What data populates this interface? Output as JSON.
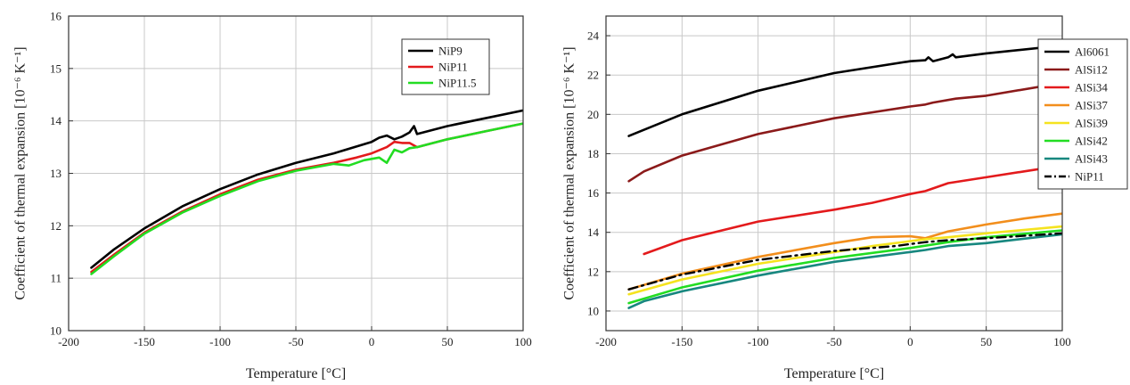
{
  "chart_data": [
    {
      "type": "line",
      "xlabel": "Temperature [°C]",
      "ylabel": "Coefficient of thermal expansion [10⁻⁶ K⁻¹]",
      "xlim": [
        -200,
        100
      ],
      "ylim": [
        10,
        16
      ],
      "xticks": [
        -200,
        -150,
        -100,
        -50,
        0,
        50,
        100
      ],
      "yticks": [
        10,
        11,
        12,
        13,
        14,
        15,
        16
      ],
      "grid": true,
      "legend_position": "top-right",
      "series": [
        {
          "name": "NiP9",
          "color": "#000000",
          "style": "solid",
          "x": [
            -185,
            -170,
            -150,
            -125,
            -100,
            -75,
            -50,
            -25,
            0,
            5,
            10,
            15,
            20,
            25,
            28,
            30,
            50,
            75,
            100
          ],
          "y": [
            11.2,
            11.55,
            11.95,
            12.37,
            12.7,
            12.98,
            13.2,
            13.38,
            13.6,
            13.68,
            13.72,
            13.65,
            13.7,
            13.78,
            13.9,
            13.75,
            13.9,
            14.05,
            14.2
          ]
        },
        {
          "name": "NiP11",
          "color": "#e31a1c",
          "style": "solid",
          "x": [
            -185,
            -170,
            -150,
            -125,
            -100,
            -75,
            -50,
            -25,
            -10,
            0,
            10,
            15,
            20,
            25,
            30,
            50,
            75,
            100
          ],
          "y": [
            11.12,
            11.45,
            11.87,
            12.27,
            12.6,
            12.88,
            13.07,
            13.2,
            13.3,
            13.38,
            13.5,
            13.6,
            13.58,
            13.58,
            13.5,
            13.65,
            13.8,
            13.95
          ]
        },
        {
          "name": "NiP11.5",
          "color": "#22dd22",
          "style": "solid",
          "x": [
            -185,
            -170,
            -150,
            -125,
            -100,
            -75,
            -50,
            -25,
            -15,
            -5,
            5,
            10,
            15,
            20,
            25,
            30,
            50,
            75,
            100
          ],
          "y": [
            11.08,
            11.42,
            11.85,
            12.25,
            12.57,
            12.85,
            13.05,
            13.18,
            13.15,
            13.25,
            13.3,
            13.2,
            13.45,
            13.4,
            13.48,
            13.5,
            13.65,
            13.8,
            13.95
          ]
        }
      ]
    },
    {
      "type": "line",
      "xlabel": "Temperature [°C]",
      "ylabel": "Coefficient of thermal expansion [10⁻⁶ K⁻¹]",
      "xlim": [
        -200,
        100
      ],
      "ylim": [
        9,
        25
      ],
      "xticks": [
        -200,
        -150,
        -100,
        -50,
        0,
        50,
        100
      ],
      "yticks": [
        10,
        12,
        14,
        16,
        18,
        20,
        22,
        24
      ],
      "grid": true,
      "legend_position": "right",
      "series": [
        {
          "name": "Al6061",
          "color": "#000000",
          "style": "solid",
          "x": [
            -185,
            -150,
            -100,
            -50,
            0,
            10,
            12,
            15,
            25,
            28,
            30,
            50,
            100
          ],
          "y": [
            18.9,
            20.0,
            21.2,
            22.1,
            22.7,
            22.75,
            22.9,
            22.7,
            22.9,
            23.05,
            22.9,
            23.1,
            23.5
          ]
        },
        {
          "name": "AlSi12",
          "color": "#8b1a1a",
          "style": "solid",
          "x": [
            -185,
            -175,
            -150,
            -100,
            -50,
            0,
            10,
            15,
            30,
            50,
            100
          ],
          "y": [
            16.6,
            17.1,
            17.9,
            19.0,
            19.8,
            20.4,
            20.5,
            20.6,
            20.8,
            20.95,
            21.6
          ]
        },
        {
          "name": "AlSi34",
          "color": "#e31a1c",
          "style": "solid",
          "x": [
            -175,
            -150,
            -100,
            -50,
            -25,
            0,
            10,
            25,
            50,
            75,
            100
          ],
          "y": [
            12.9,
            13.6,
            14.55,
            15.15,
            15.5,
            15.95,
            16.1,
            16.5,
            16.8,
            17.1,
            17.4
          ]
        },
        {
          "name": "AlSi37",
          "color": "#f28e1c",
          "style": "solid",
          "x": [
            -185,
            -150,
            -100,
            -50,
            -25,
            0,
            10,
            25,
            50,
            75,
            100
          ],
          "y": [
            11.1,
            11.9,
            12.75,
            13.45,
            13.75,
            13.8,
            13.7,
            14.05,
            14.4,
            14.7,
            14.95
          ]
        },
        {
          "name": "AlSi39",
          "color": "#f5e31f",
          "style": "solid",
          "x": [
            -185,
            -150,
            -100,
            -50,
            -25,
            0,
            10,
            25,
            50,
            100
          ],
          "y": [
            10.85,
            11.6,
            12.4,
            13.0,
            13.3,
            13.55,
            13.65,
            13.75,
            13.95,
            14.3
          ]
        },
        {
          "name": "AlSi42",
          "color": "#22dd22",
          "style": "solid",
          "x": [
            -185,
            -150,
            -100,
            -50,
            0,
            25,
            50,
            100
          ],
          "y": [
            10.4,
            11.2,
            12.05,
            12.7,
            13.2,
            13.5,
            13.75,
            14.1
          ]
        },
        {
          "name": "AlSi43",
          "color": "#17877f",
          "style": "solid",
          "x": [
            -185,
            -175,
            -150,
            -100,
            -50,
            0,
            10,
            25,
            50,
            100
          ],
          "y": [
            10.15,
            10.5,
            11.0,
            11.8,
            12.5,
            13.0,
            13.1,
            13.3,
            13.45,
            13.9
          ]
        },
        {
          "name": "NiP11",
          "color": "#000000",
          "style": "dashdot",
          "x": [
            -185,
            -150,
            -100,
            -50,
            -10,
            0,
            10,
            25,
            50,
            100
          ],
          "y": [
            11.1,
            11.85,
            12.6,
            13.05,
            13.3,
            13.4,
            13.5,
            13.6,
            13.7,
            13.95
          ]
        }
      ]
    }
  ]
}
